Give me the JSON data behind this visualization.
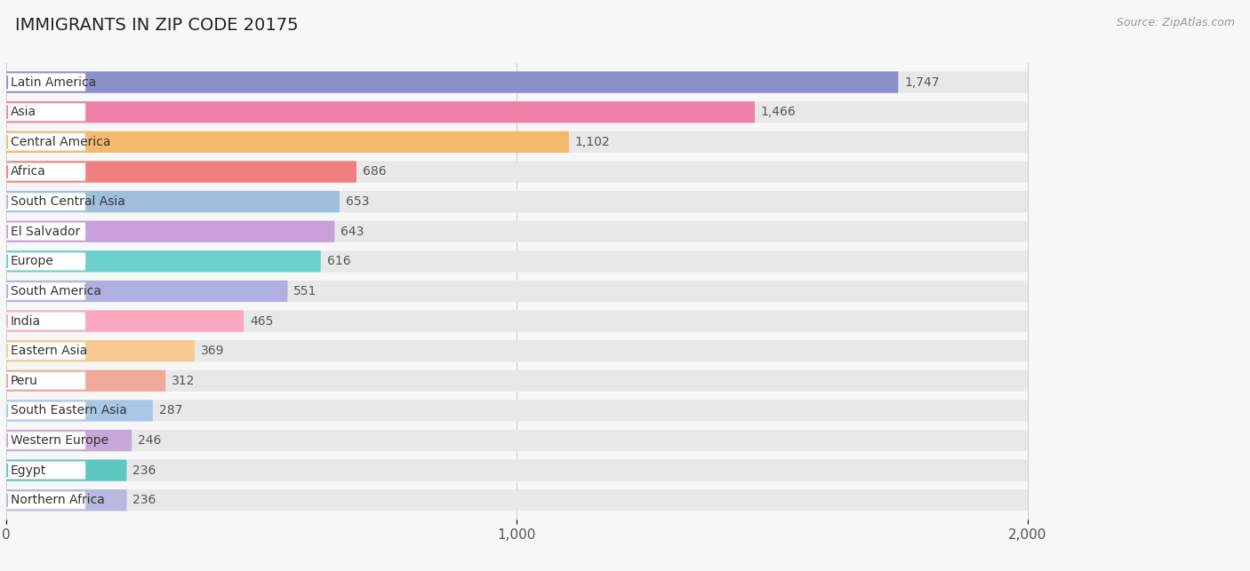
{
  "title": "IMMIGRANTS IN ZIP CODE 20175",
  "source": "Source: ZipAtlas.com",
  "categories": [
    "Latin America",
    "Asia",
    "Central America",
    "Africa",
    "South Central Asia",
    "El Salvador",
    "Europe",
    "South America",
    "India",
    "Eastern Asia",
    "Peru",
    "South Eastern Asia",
    "Western Europe",
    "Egypt",
    "Northern Africa"
  ],
  "values": [
    1747,
    1466,
    1102,
    686,
    653,
    643,
    616,
    551,
    465,
    369,
    312,
    287,
    246,
    236,
    236
  ],
  "colors": [
    "#8b8fcc",
    "#f07fa8",
    "#f5b96e",
    "#f08080",
    "#a0bfdf",
    "#c9a0dc",
    "#6bcfca",
    "#b0b0e0",
    "#f9a8c0",
    "#f7c98e",
    "#f0a898",
    "#a8c8e8",
    "#c8a8d8",
    "#5ec8c0",
    "#b8b8e0"
  ],
  "xlim_max": 2000,
  "xticks": [
    0,
    1000,
    2000
  ],
  "background_color": "#f7f7f7",
  "bar_bg_color": "#e8e8e8",
  "row_bg_color": "#f0f0f0",
  "title_fontsize": 14,
  "label_fontsize": 10,
  "value_fontsize": 10,
  "source_fontsize": 9
}
